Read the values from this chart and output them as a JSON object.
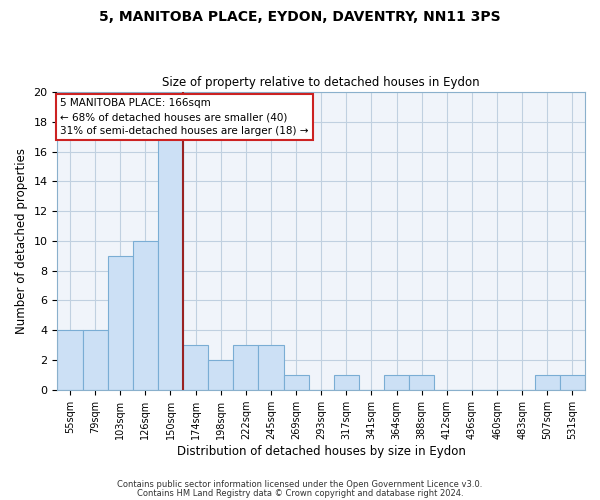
{
  "title": "5, MANITOBA PLACE, EYDON, DAVENTRY, NN11 3PS",
  "subtitle": "Size of property relative to detached houses in Eydon",
  "xlabel": "Distribution of detached houses by size in Eydon",
  "ylabel": "Number of detached properties",
  "bin_labels": [
    "55sqm",
    "79sqm",
    "103sqm",
    "126sqm",
    "150sqm",
    "174sqm",
    "198sqm",
    "222sqm",
    "245sqm",
    "269sqm",
    "293sqm",
    "317sqm",
    "341sqm",
    "364sqm",
    "388sqm",
    "412sqm",
    "436sqm",
    "460sqm",
    "483sqm",
    "507sqm",
    "531sqm"
  ],
  "bar_heights": [
    4,
    4,
    9,
    10,
    17,
    3,
    2,
    3,
    3,
    1,
    0,
    1,
    0,
    1,
    1,
    0,
    0,
    0,
    0,
    1,
    1
  ],
  "bar_color": "#cce0f5",
  "bar_edge_color": "#7aadd4",
  "marker_line_color": "#992222",
  "annotation_lines": [
    "5 MANITOBA PLACE: 166sqm",
    "← 68% of detached houses are smaller (40)",
    "31% of semi-detached houses are larger (18) →"
  ],
  "ylim": [
    0,
    20
  ],
  "yticks": [
    0,
    2,
    4,
    6,
    8,
    10,
    12,
    14,
    16,
    18,
    20
  ],
  "footer_line1": "Contains HM Land Registry data © Crown copyright and database right 2024.",
  "footer_line2": "Contains public sector information licensed under the Open Government Licence v3.0.",
  "bg_color": "#f0f4fa",
  "grid_color": "#c0d0e0"
}
